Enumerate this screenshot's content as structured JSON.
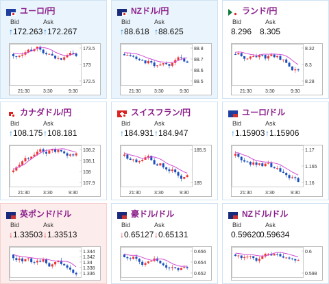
{
  "labels": {
    "bid": "Bid",
    "ask": "Ask"
  },
  "colors": {
    "up": "#1c88e6",
    "down": "#d33",
    "title": "#8b1e8b",
    "candle_up": "#e33",
    "candle_down": "#1a4fbf",
    "ma": "#d24cd2"
  },
  "cards": [
    {
      "pair": "ユーロ/円",
      "flag": "eu-jp-flag",
      "theme": "blue",
      "bid": "172.263",
      "ask": "172.267",
      "dir": "up",
      "ticks": [
        "173.5",
        "173",
        "172.5"
      ],
      "times": [
        "21:30",
        "3:30",
        "9:30"
      ]
    },
    {
      "pair": "NZドル/円",
      "flag": "nz-jp-flag",
      "theme": "blue",
      "bid": "88.618",
      "ask": "88.625",
      "dir": "up",
      "ticks": [
        "88.8",
        "88.7",
        "88.6",
        "88.5"
      ],
      "times": [
        "21:30",
        "3:30",
        "9:30"
      ]
    },
    {
      "pair": "ランド/円",
      "flag": "za-jp-flag",
      "theme": "white",
      "bid": "8.296",
      "ask": "8.305",
      "dir": "none",
      "ticks": [
        "8.32",
        "8.3",
        "8.28"
      ],
      "times": [
        "21:30",
        "3:30",
        "9:30"
      ]
    },
    {
      "pair": "カナダドル/円",
      "flag": "ca-jp-flag",
      "theme": "white",
      "bid": "108.175",
      "ask": "108.181",
      "dir": "up",
      "ticks": [
        "108.2",
        "108.1",
        "108",
        "107.9"
      ],
      "times": [
        "21:30",
        "3:30",
        "9:30"
      ]
    },
    {
      "pair": "スイスフラン/円",
      "flag": "ch-jp-flag",
      "theme": "white",
      "bid": "184.931",
      "ask": "184.947",
      "dir": "up",
      "ticks": [
        "185.5",
        "185"
      ],
      "times": [
        "21:30",
        "3:30",
        "9:30"
      ]
    },
    {
      "pair": "ユーロ/ドル",
      "flag": "eu-us-flag",
      "theme": "white",
      "bid": "1.15903",
      "ask": "1.15906",
      "dir": "up",
      "ticks": [
        "1.17",
        "1.165",
        "1.16"
      ],
      "times": [
        "21:30",
        "3:30",
        "9:30"
      ]
    },
    {
      "pair": "英ポンド/ドル",
      "flag": "gb-us-flag",
      "theme": "pink",
      "bid": "1.33503",
      "ask": "1.33513",
      "dir": "down",
      "ticks": [
        "1.344",
        "1.342",
        "1.34",
        "1.338",
        "1.336"
      ],
      "times": []
    },
    {
      "pair": "豪ドル/ドル",
      "flag": "au-us-flag",
      "theme": "white",
      "bid": "0.65127",
      "ask": "0.65131",
      "dir": "down",
      "ticks": [
        "0.656",
        "0.654",
        "0.652"
      ],
      "times": []
    },
    {
      "pair": "NZドル/ドル",
      "flag": "nz-us-flag",
      "theme": "white",
      "bid": "0.59620",
      "ask": "0.59634",
      "dir": "none",
      "ticks": [
        "0.6",
        "0.598"
      ],
      "times": []
    }
  ]
}
